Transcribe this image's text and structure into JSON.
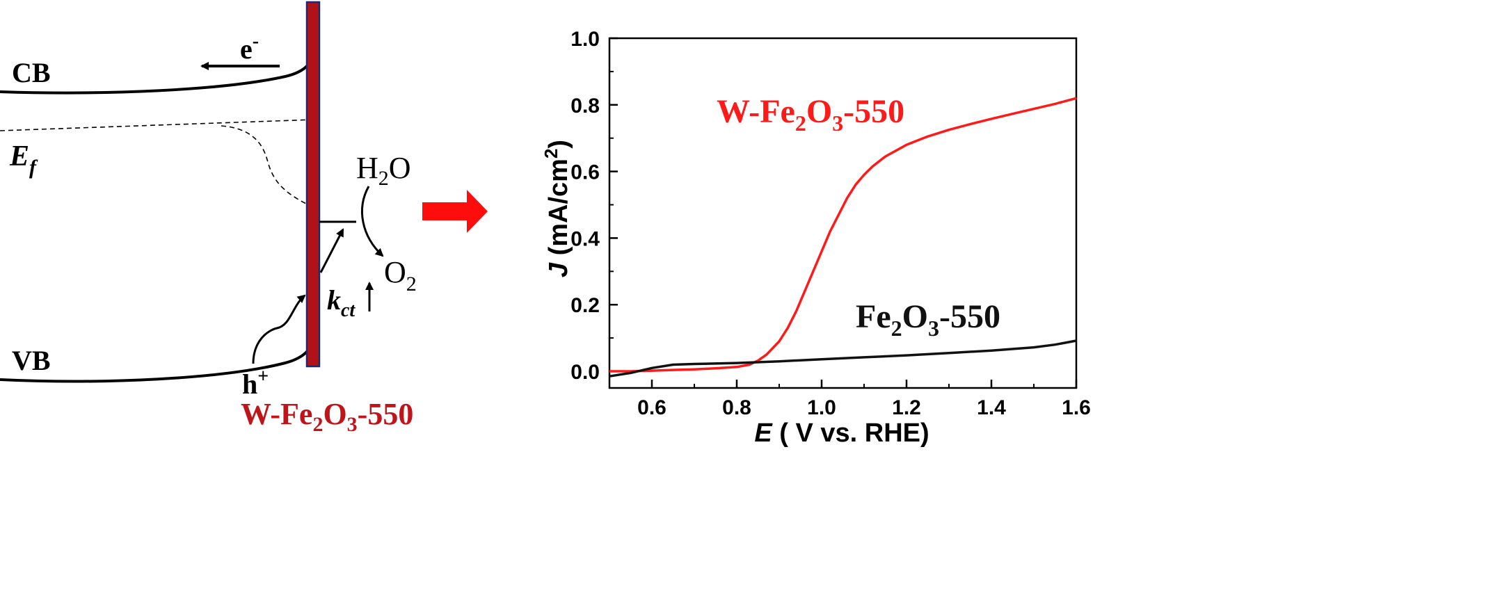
{
  "diagram": {
    "cb_label": "CB",
    "vb_label": "VB",
    "ef_label": "E",
    "ef_sub": "f",
    "electron_label": "e",
    "electron_sup": "-",
    "hole_label": "h",
    "hole_sup": "+",
    "water_label": "H",
    "water_sub": "2",
    "water_tail": "O",
    "oxygen_label": "O",
    "oxygen_sub": "2",
    "kct_label": "k",
    "kct_sub": "ct",
    "sample_label": {
      "p1": "W-Fe",
      "s1": "2",
      "p2": "O",
      "s2": "3",
      "p3": "-550"
    },
    "colors": {
      "electrode_fill": "#b01218",
      "electrode_stroke": "#1e2a6b",
      "sample_label": "#c0141b",
      "arrow": "#ff0d0d"
    }
  },
  "chart_data": {
    "type": "line",
    "xlabel": {
      "italic": "E",
      "rest": " ( V vs. RHE)"
    },
    "ylabel": {
      "italic": "J",
      "rest": " (mA/cm",
      "sup": "2",
      "close": ")"
    },
    "xlim": [
      0.5,
      1.6
    ],
    "ylim": [
      -0.05,
      1.0
    ],
    "x_ticks": [
      "0.6",
      "0.8",
      "1.0",
      "1.2",
      "1.4",
      "1.6"
    ],
    "y_ticks": [
      "0.0",
      "0.2",
      "0.4",
      "0.6",
      "0.8",
      "1.0"
    ],
    "series": [
      {
        "name": {
          "p1": "W-Fe",
          "s1": "2",
          "p2": "O",
          "s2": "3",
          "p3": "-550"
        },
        "color": "#ff1a1a",
        "x": [
          0.5,
          0.55,
          0.6,
          0.65,
          0.7,
          0.75,
          0.8,
          0.83,
          0.85,
          0.87,
          0.9,
          0.92,
          0.94,
          0.96,
          0.98,
          1.0,
          1.02,
          1.04,
          1.06,
          1.08,
          1.1,
          1.12,
          1.15,
          1.2,
          1.25,
          1.3,
          1.35,
          1.4,
          1.45,
          1.5,
          1.55,
          1.6
        ],
        "y": [
          0.0,
          0.0,
          0.002,
          0.004,
          0.006,
          0.009,
          0.013,
          0.02,
          0.032,
          0.05,
          0.09,
          0.13,
          0.18,
          0.24,
          0.3,
          0.36,
          0.42,
          0.47,
          0.52,
          0.56,
          0.59,
          0.615,
          0.645,
          0.68,
          0.705,
          0.725,
          0.742,
          0.758,
          0.773,
          0.788,
          0.803,
          0.82
        ]
      },
      {
        "name": {
          "p1": "Fe",
          "s1": "2",
          "p2": "O",
          "s2": "3",
          "p3": "-550"
        },
        "color": "#111111",
        "x": [
          0.5,
          0.55,
          0.6,
          0.65,
          0.7,
          0.8,
          0.9,
          1.0,
          1.1,
          1.2,
          1.3,
          1.4,
          1.5,
          1.55,
          1.6
        ],
        "y": [
          -0.015,
          -0.005,
          0.01,
          0.02,
          0.022,
          0.025,
          0.03,
          0.036,
          0.042,
          0.048,
          0.055,
          0.062,
          0.072,
          0.08,
          0.092
        ]
      }
    ]
  }
}
